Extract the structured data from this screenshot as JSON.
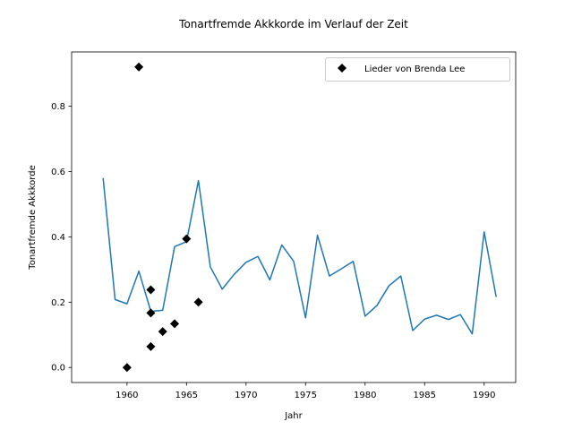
{
  "chart_data": {
    "type": "line",
    "title": "Tonartfremde Akkkorde im Verlauf der Zeit",
    "xlabel": "Jahr",
    "ylabel": "Tonartfremde Akkkorde",
    "xlim": [
      1955.35,
      1992.65
    ],
    "ylim": [
      -0.046,
      0.966
    ],
    "xticks": [
      1960,
      1965,
      1970,
      1975,
      1980,
      1985,
      1990
    ],
    "yticks": [
      0.0,
      0.2,
      0.4,
      0.6,
      0.8
    ],
    "xtick_labels": [
      "1960",
      "1965",
      "1970",
      "1975",
      "1980",
      "1985",
      "1990"
    ],
    "ytick_labels": [
      "0.0",
      "0.2",
      "0.4",
      "0.6",
      "0.8"
    ],
    "grid": false,
    "legend_position": "top-right",
    "series": [
      {
        "type": "line",
        "color": "#1f77b4",
        "x": [
          1958,
          1959,
          1960,
          1961,
          1962,
          1963,
          1964,
          1965,
          1966,
          1967,
          1968,
          1969,
          1970,
          1971,
          1972,
          1973,
          1974,
          1975,
          1976,
          1977,
          1978,
          1979,
          1980,
          1981,
          1982,
          1983,
          1984,
          1985,
          1986,
          1987,
          1988,
          1989,
          1990,
          1991
        ],
        "y": [
          0.578,
          0.208,
          0.195,
          0.295,
          0.172,
          0.175,
          0.37,
          0.385,
          0.572,
          0.308,
          0.24,
          0.285,
          0.322,
          0.34,
          0.268,
          0.375,
          0.325,
          0.152,
          0.405,
          0.28,
          0.302,
          0.325,
          0.157,
          0.19,
          0.25,
          0.28,
          0.113,
          0.148,
          0.16,
          0.147,
          0.162,
          0.103,
          0.415,
          0.218
        ]
      },
      {
        "name": "Lieder von Brenda Lee",
        "type": "scatter",
        "marker": "diamond",
        "color": "#000000",
        "x": [
          1960,
          1961,
          1962,
          1962,
          1962,
          1963,
          1964,
          1965,
          1966
        ],
        "y": [
          0.0,
          0.92,
          0.238,
          0.167,
          0.064,
          0.11,
          0.134,
          0.394,
          0.2
        ]
      }
    ]
  }
}
